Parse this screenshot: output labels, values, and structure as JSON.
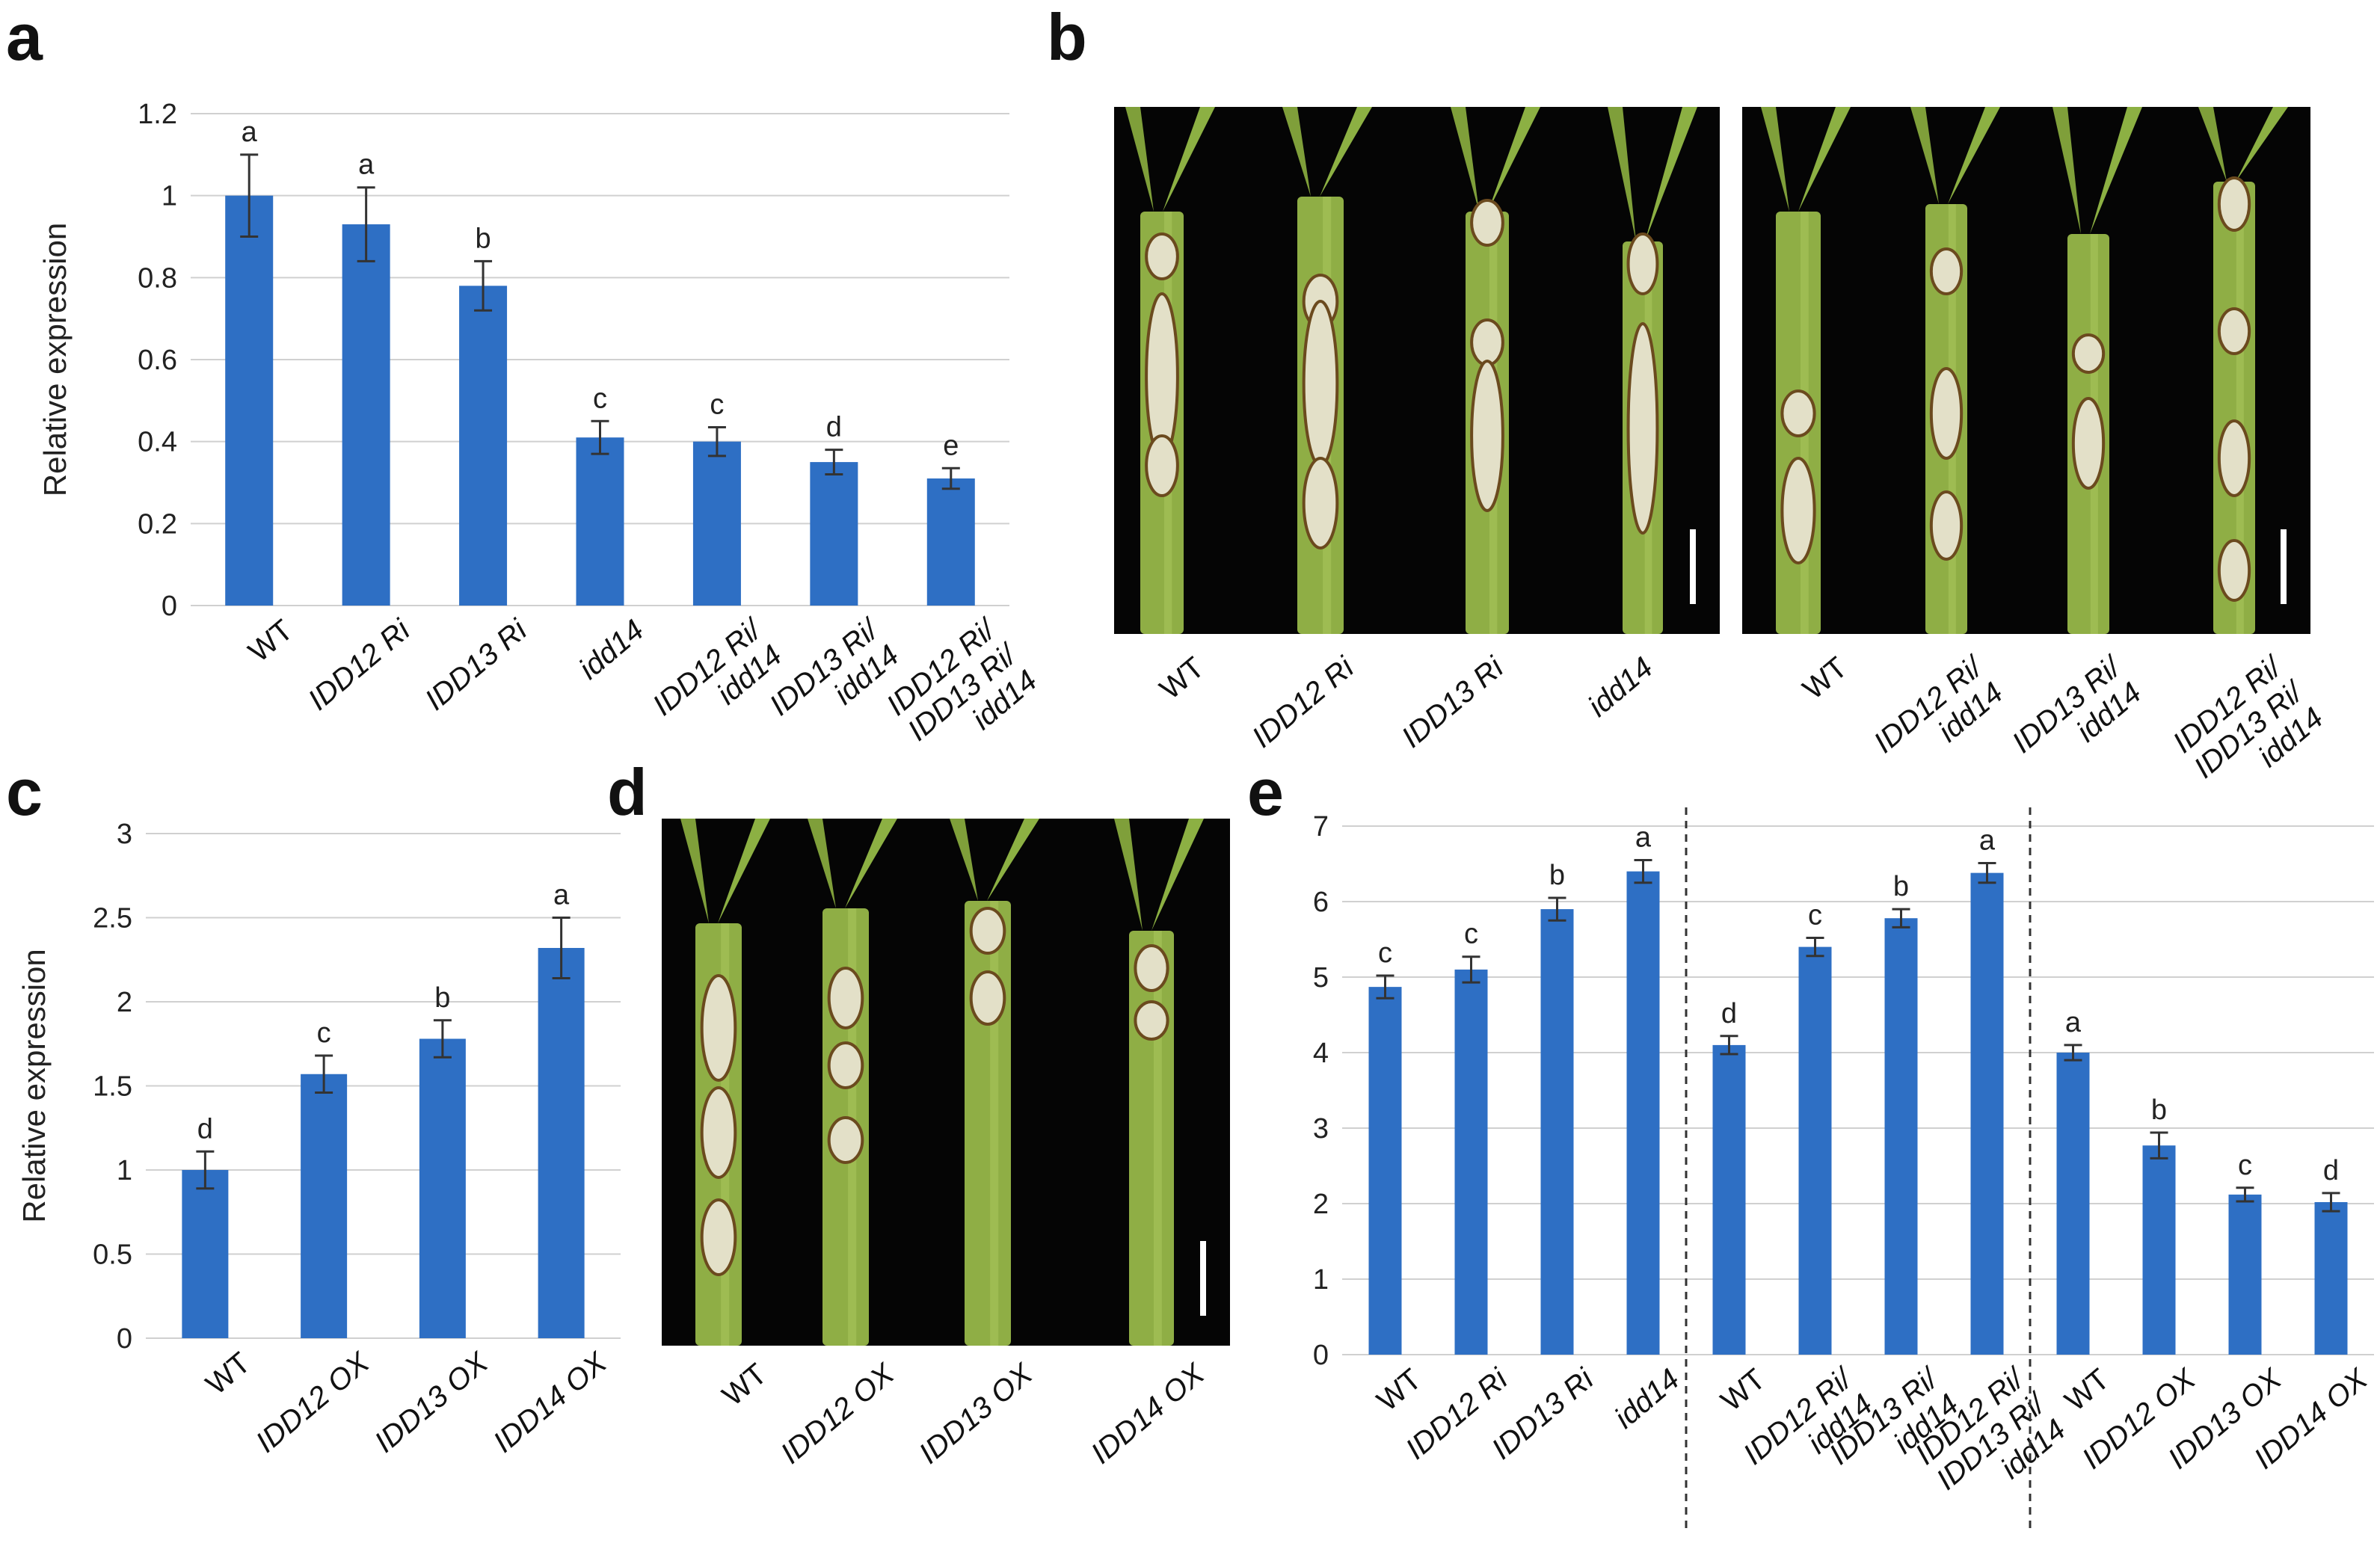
{
  "panels": {
    "a": "a",
    "b": "b",
    "c": "c",
    "d": "d",
    "e": "e"
  },
  "colors": {
    "bar": "#2e6fc4",
    "photo_bg": "#050505",
    "stem": "#8fae45",
    "lesion": "#e3e0c8"
  },
  "chart_data": [
    {
      "id": "a",
      "type": "bar",
      "title": "",
      "xlabel": "",
      "ylabel": "Relative  expression",
      "ylim": [
        0,
        1.2
      ],
      "yticks": [
        "0",
        "0.2",
        "0.4",
        "0.6",
        "0.8",
        "1",
        "1.2"
      ],
      "grid": true,
      "categories": [
        {
          "lines": [
            "WT"
          ],
          "italic": false
        },
        {
          "lines": [
            "IDD12 Ri"
          ],
          "italic": true
        },
        {
          "lines": [
            "IDD13 Ri"
          ],
          "italic": true
        },
        {
          "lines": [
            "idd14"
          ],
          "italic": true
        },
        {
          "lines": [
            "IDD12 Ri/",
            "idd14"
          ],
          "italic": true
        },
        {
          "lines": [
            "IDD13 Ri/",
            "idd14"
          ],
          "italic": true
        },
        {
          "lines": [
            "IDD12 Ri/",
            "IDD13 Ri/",
            "idd14"
          ],
          "italic": true
        }
      ],
      "values": [
        1.0,
        0.93,
        0.78,
        0.41,
        0.4,
        0.35,
        0.31
      ],
      "errors": [
        0.1,
        0.09,
        0.06,
        0.04,
        0.035,
        0.03,
        0.025
      ],
      "letters": [
        "a",
        "a",
        "b",
        "c",
        "c",
        "d",
        "e"
      ]
    },
    {
      "id": "c",
      "type": "bar",
      "title": "",
      "xlabel": "",
      "ylabel": "Relative  expression",
      "ylim": [
        0,
        3
      ],
      "yticks": [
        "0",
        "0.5",
        "1",
        "1.5",
        "2",
        "2.5",
        "3"
      ],
      "grid": true,
      "categories": [
        {
          "lines": [
            "WT"
          ],
          "italic": false
        },
        {
          "lines": [
            "IDD12 OX"
          ],
          "italic": true
        },
        {
          "lines": [
            "IDD13 OX"
          ],
          "italic": true
        },
        {
          "lines": [
            "IDD14 OX"
          ],
          "italic": true
        }
      ],
      "values": [
        1.0,
        1.57,
        1.78,
        2.32
      ],
      "errors": [
        0.11,
        0.11,
        0.11,
        0.18
      ],
      "letters": [
        "d",
        "c",
        "b",
        "a"
      ]
    },
    {
      "id": "e",
      "type": "bar",
      "title": "",
      "xlabel": "",
      "ylabel": "",
      "ylim": [
        0,
        7
      ],
      "yticks": [
        "0",
        "1",
        "2",
        "3",
        "4",
        "5",
        "6",
        "7"
      ],
      "grid": true,
      "groups": [
        4,
        4,
        4
      ],
      "categories": [
        {
          "lines": [
            "WT"
          ],
          "italic": false
        },
        {
          "lines": [
            "IDD12 Ri"
          ],
          "italic": true
        },
        {
          "lines": [
            "IDD13 Ri"
          ],
          "italic": true
        },
        {
          "lines": [
            "idd14"
          ],
          "italic": true
        },
        {
          "lines": [
            "WT"
          ],
          "italic": false
        },
        {
          "lines": [
            "IDD12 Ri/",
            "idd14"
          ],
          "italic": true
        },
        {
          "lines": [
            "IDD13 Ri/",
            "idd14"
          ],
          "italic": true
        },
        {
          "lines": [
            "IDD12 Ri/",
            "IDD13 Ri/",
            "idd14"
          ],
          "italic": true
        },
        {
          "lines": [
            "WT"
          ],
          "italic": false
        },
        {
          "lines": [
            "IDD12 OX"
          ],
          "italic": true
        },
        {
          "lines": [
            "IDD13 OX"
          ],
          "italic": true
        },
        {
          "lines": [
            "IDD14 OX"
          ],
          "italic": true
        }
      ],
      "values": [
        4.87,
        5.1,
        5.9,
        6.4,
        4.1,
        5.4,
        5.78,
        6.38,
        4.0,
        2.77,
        2.12,
        2.02
      ],
      "errors": [
        0.15,
        0.17,
        0.15,
        0.15,
        0.12,
        0.12,
        0.12,
        0.13,
        0.1,
        0.17,
        0.09,
        0.12
      ],
      "letters": [
        "c",
        "c",
        "b",
        "a",
        "d",
        "c",
        "b",
        "a",
        "a",
        "b",
        "c",
        "d"
      ]
    }
  ],
  "photos": {
    "b_left_labels": [
      {
        "lines": [
          "WT"
        ],
        "italic": false
      },
      {
        "lines": [
          "IDD12 Ri"
        ],
        "italic": true
      },
      {
        "lines": [
          "IDD13 Ri"
        ],
        "italic": true
      },
      {
        "lines": [
          "idd14"
        ],
        "italic": true
      }
    ],
    "b_right_labels": [
      {
        "lines": [
          "WT"
        ],
        "italic": false
      },
      {
        "lines": [
          "IDD12 Ri/",
          "idd14"
        ],
        "italic": true
      },
      {
        "lines": [
          "IDD13 Ri/",
          "idd14"
        ],
        "italic": true
      },
      {
        "lines": [
          "IDD12 Ri/",
          "IDD13 Ri/",
          "idd14"
        ],
        "italic": true
      }
    ],
    "d_labels": [
      {
        "lines": [
          "WT"
        ],
        "italic": false
      },
      {
        "lines": [
          "IDD12 OX"
        ],
        "italic": true
      },
      {
        "lines": [
          "IDD13 OX"
        ],
        "italic": true
      },
      {
        "lines": [
          "IDD14 OX"
        ],
        "italic": true
      }
    ]
  }
}
